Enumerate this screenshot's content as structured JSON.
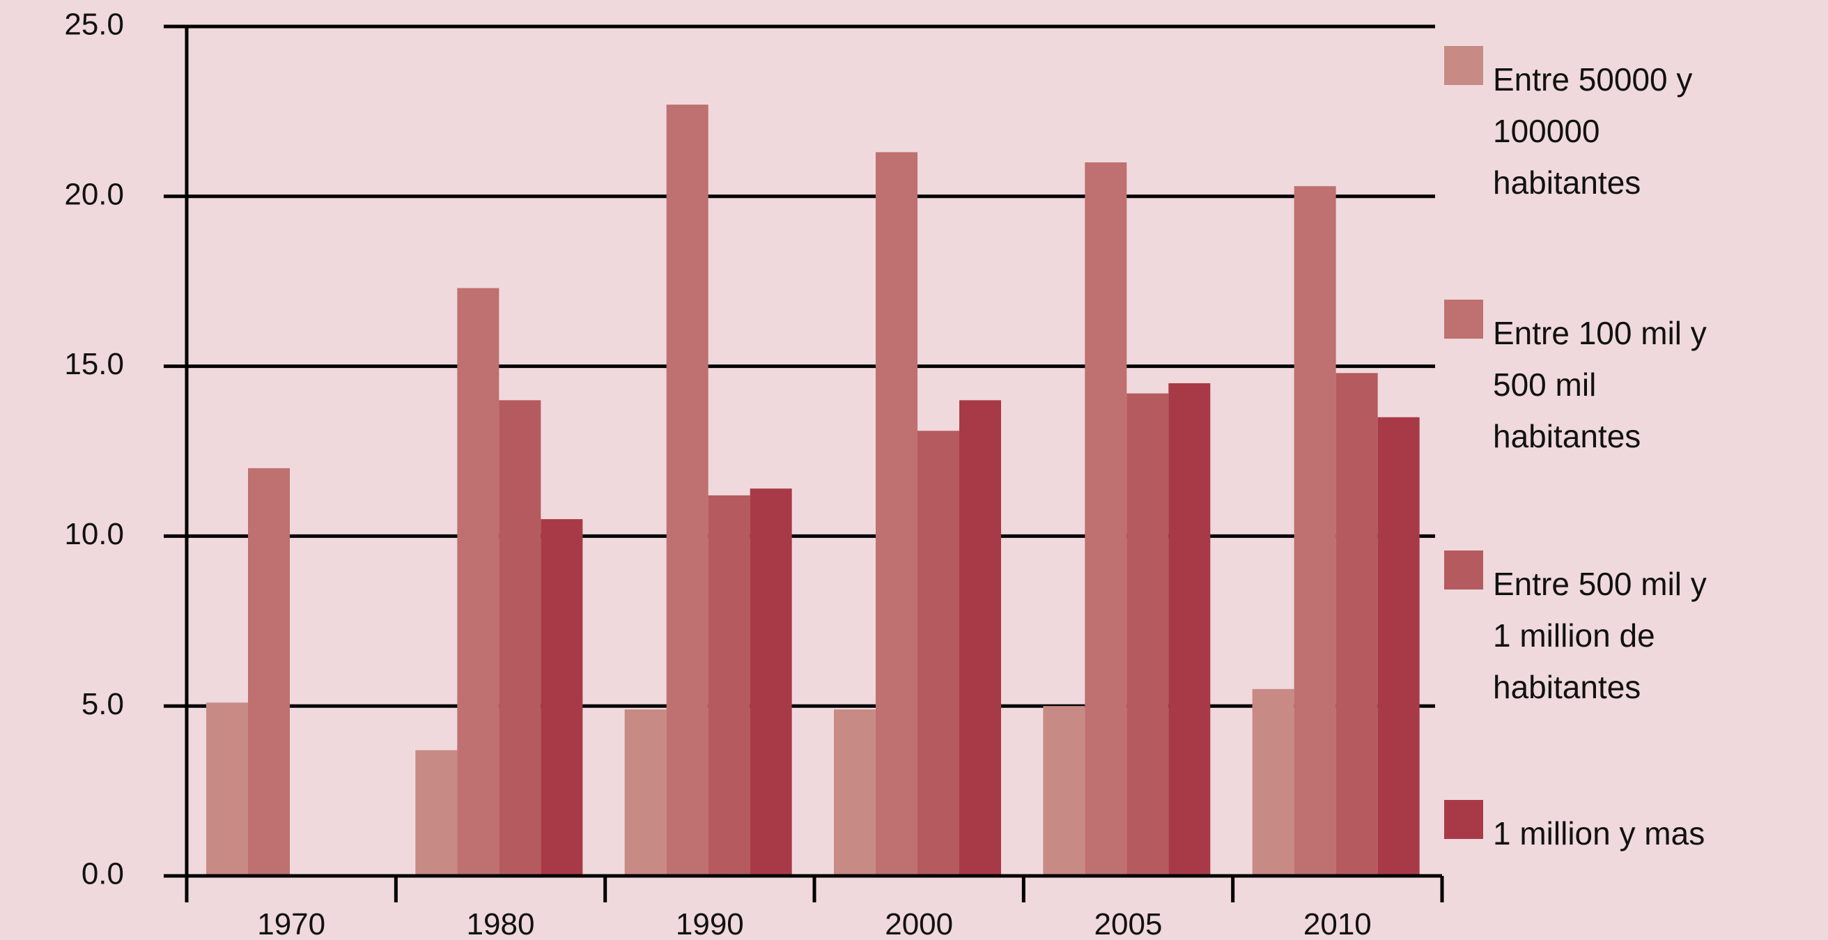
{
  "chart_data": {
    "type": "bar",
    "title": "",
    "xlabel": "",
    "ylabel": "",
    "categories": [
      "1970",
      "1980",
      "1990",
      "2000",
      "2005",
      "2010"
    ],
    "ylim": [
      0,
      25
    ],
    "yticks": [
      "0.0",
      "5.0",
      "10.0",
      "15.0",
      "20.0",
      "25.0"
    ],
    "grid": "horizontal",
    "legend_position": "right",
    "series": [
      {
        "name": "Entre 50000 y 100000 habitantes",
        "legend_lines": [
          "Entre 50000 y",
          "100000",
          "habitantes"
        ],
        "color": "#c88a85",
        "values": [
          5.1,
          3.7,
          4.9,
          4.9,
          5.0,
          5.5
        ]
      },
      {
        "name": "Entre 100 mil y 500 mil habitantes",
        "legend_lines": [
          "Entre 100 mil y",
          "500 mil",
          "habitantes"
        ],
        "color": "#bf7070",
        "values": [
          12.0,
          17.3,
          22.7,
          21.3,
          21.0,
          20.3
        ]
      },
      {
        "name": "Entre 500 mil y 1 million de habitantes",
        "legend_lines": [
          "Entre 500 mil y",
          "1 million de",
          "habitantes"
        ],
        "color": "#b55a5f",
        "values": [
          null,
          14.0,
          11.2,
          13.1,
          14.2,
          14.8
        ]
      },
      {
        "name": "1 million y mas",
        "legend_lines": [
          "1 million y mas"
        ],
        "color": "#a83a47",
        "values": [
          null,
          10.5,
          11.4,
          14.0,
          14.5,
          13.5
        ]
      }
    ]
  }
}
